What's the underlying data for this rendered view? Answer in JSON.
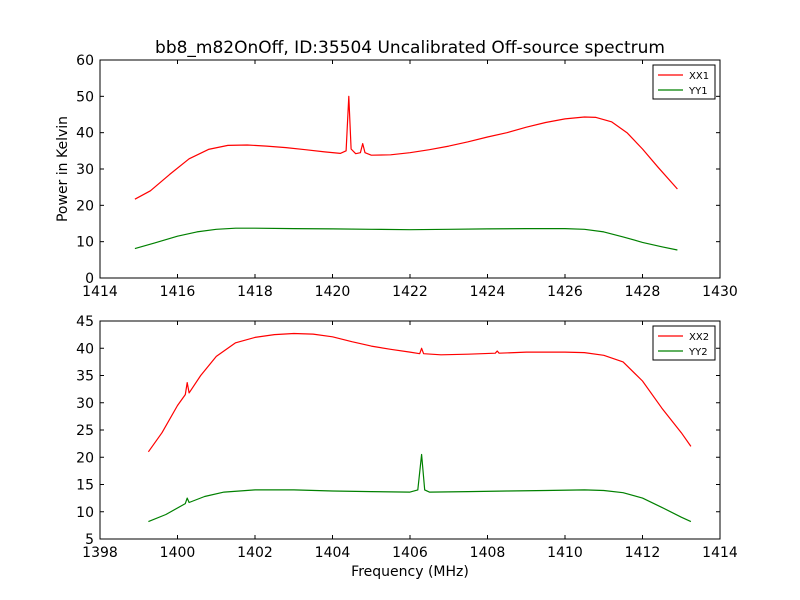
{
  "figure": {
    "title": "bb8_m82OnOff, ID:35504 Uncalibrated Off-source spectrum",
    "xlabel": "Frequency (MHz)",
    "ylabel": "Power in Kelvin"
  },
  "chart_data": [
    {
      "type": "line",
      "title": "bb8_m82OnOff, ID:35504 Uncalibrated Off-source spectrum",
      "xlabel": "",
      "ylabel": "Power in Kelvin",
      "xlim": [
        1414,
        1430
      ],
      "ylim": [
        0,
        60
      ],
      "xticks": [
        1414,
        1416,
        1418,
        1420,
        1422,
        1424,
        1426,
        1428,
        1430
      ],
      "yticks": [
        0,
        10,
        20,
        30,
        40,
        50,
        60
      ],
      "grid": false,
      "legend": "top-right",
      "series": [
        {
          "name": "XX1",
          "color": "#ff0000",
          "points": [
            [
              1414.9,
              21.7
            ],
            [
              1415.3,
              24.0
            ],
            [
              1415.8,
              28.5
            ],
            [
              1416.3,
              32.8
            ],
            [
              1416.8,
              35.4
            ],
            [
              1417.3,
              36.5
            ],
            [
              1417.8,
              36.6
            ],
            [
              1418.3,
              36.3
            ],
            [
              1418.8,
              35.9
            ],
            [
              1419.3,
              35.3
            ],
            [
              1419.8,
              34.7
            ],
            [
              1420.2,
              34.3
            ],
            [
              1420.35,
              35.0
            ],
            [
              1420.42,
              50.0
            ],
            [
              1420.48,
              35.5
            ],
            [
              1420.6,
              34.2
            ],
            [
              1420.72,
              34.5
            ],
            [
              1420.78,
              37.0
            ],
            [
              1420.84,
              34.5
            ],
            [
              1421.0,
              33.8
            ],
            [
              1421.5,
              33.9
            ],
            [
              1422.0,
              34.5
            ],
            [
              1422.5,
              35.3
            ],
            [
              1423.0,
              36.3
            ],
            [
              1423.5,
              37.5
            ],
            [
              1424.0,
              38.8
            ],
            [
              1424.5,
              40.0
            ],
            [
              1425.0,
              41.5
            ],
            [
              1425.5,
              42.8
            ],
            [
              1426.0,
              43.8
            ],
            [
              1426.5,
              44.3
            ],
            [
              1426.8,
              44.2
            ],
            [
              1427.2,
              43.0
            ],
            [
              1427.6,
              40.0
            ],
            [
              1428.0,
              35.5
            ],
            [
              1428.4,
              30.5
            ],
            [
              1428.9,
              24.5
            ]
          ]
        },
        {
          "name": "YY1",
          "color": "#008000",
          "points": [
            [
              1414.9,
              8.1
            ],
            [
              1415.4,
              9.6
            ],
            [
              1416.0,
              11.5
            ],
            [
              1416.5,
              12.7
            ],
            [
              1417.0,
              13.4
            ],
            [
              1417.5,
              13.7
            ],
            [
              1418.0,
              13.7
            ],
            [
              1419.0,
              13.6
            ],
            [
              1420.0,
              13.5
            ],
            [
              1421.0,
              13.4
            ],
            [
              1422.0,
              13.3
            ],
            [
              1423.0,
              13.4
            ],
            [
              1424.0,
              13.5
            ],
            [
              1425.0,
              13.6
            ],
            [
              1426.0,
              13.6
            ],
            [
              1426.5,
              13.4
            ],
            [
              1427.0,
              12.7
            ],
            [
              1427.5,
              11.3
            ],
            [
              1428.0,
              9.8
            ],
            [
              1428.5,
              8.6
            ],
            [
              1428.9,
              7.7
            ]
          ]
        }
      ]
    },
    {
      "type": "line",
      "title": "",
      "xlabel": "Frequency (MHz)",
      "ylabel": "",
      "xlim": [
        1398,
        1414
      ],
      "ylim": [
        5,
        45
      ],
      "xticks": [
        1398,
        1400,
        1402,
        1404,
        1406,
        1408,
        1410,
        1412,
        1414
      ],
      "yticks": [
        5,
        10,
        15,
        20,
        25,
        30,
        35,
        40,
        45
      ],
      "grid": false,
      "legend": "top-right",
      "series": [
        {
          "name": "XX2",
          "color": "#ff0000",
          "points": [
            [
              1399.25,
              21.0
            ],
            [
              1399.6,
              24.5
            ],
            [
              1400.0,
              29.5
            ],
            [
              1400.2,
              31.5
            ],
            [
              1400.25,
              33.7
            ],
            [
              1400.3,
              31.8
            ],
            [
              1400.6,
              35.0
            ],
            [
              1401.0,
              38.5
            ],
            [
              1401.5,
              41.0
            ],
            [
              1402.0,
              42.0
            ],
            [
              1402.5,
              42.5
            ],
            [
              1403.0,
              42.7
            ],
            [
              1403.5,
              42.6
            ],
            [
              1404.0,
              42.1
            ],
            [
              1404.5,
              41.2
            ],
            [
              1405.0,
              40.4
            ],
            [
              1405.5,
              39.8
            ],
            [
              1406.0,
              39.3
            ],
            [
              1406.25,
              39.0
            ],
            [
              1406.3,
              40.0
            ],
            [
              1406.35,
              39.0
            ],
            [
              1406.8,
              38.8
            ],
            [
              1407.5,
              38.9
            ],
            [
              1408.2,
              39.1
            ],
            [
              1408.25,
              39.5
            ],
            [
              1408.3,
              39.1
            ],
            [
              1409.0,
              39.3
            ],
            [
              1410.0,
              39.3
            ],
            [
              1410.5,
              39.2
            ],
            [
              1411.0,
              38.7
            ],
            [
              1411.5,
              37.5
            ],
            [
              1412.0,
              34.0
            ],
            [
              1412.5,
              29.0
            ],
            [
              1413.0,
              24.5
            ],
            [
              1413.25,
              22.0
            ]
          ]
        },
        {
          "name": "YY2",
          "color": "#008000",
          "points": [
            [
              1399.25,
              8.2
            ],
            [
              1399.7,
              9.5
            ],
            [
              1400.2,
              11.5
            ],
            [
              1400.25,
              12.5
            ],
            [
              1400.3,
              11.7
            ],
            [
              1400.7,
              12.8
            ],
            [
              1401.2,
              13.6
            ],
            [
              1402.0,
              14.0
            ],
            [
              1403.0,
              14.0
            ],
            [
              1404.0,
              13.8
            ],
            [
              1405.0,
              13.7
            ],
            [
              1406.0,
              13.6
            ],
            [
              1406.2,
              14.0
            ],
            [
              1406.3,
              20.5
            ],
            [
              1406.38,
              14.0
            ],
            [
              1406.5,
              13.6
            ],
            [
              1407.5,
              13.7
            ],
            [
              1408.5,
              13.8
            ],
            [
              1409.5,
              13.9
            ],
            [
              1410.5,
              14.0
            ],
            [
              1411.0,
              13.9
            ],
            [
              1411.5,
              13.5
            ],
            [
              1412.0,
              12.5
            ],
            [
              1412.5,
              10.8
            ],
            [
              1413.0,
              9.0
            ],
            [
              1413.25,
              8.2
            ]
          ]
        }
      ]
    }
  ]
}
